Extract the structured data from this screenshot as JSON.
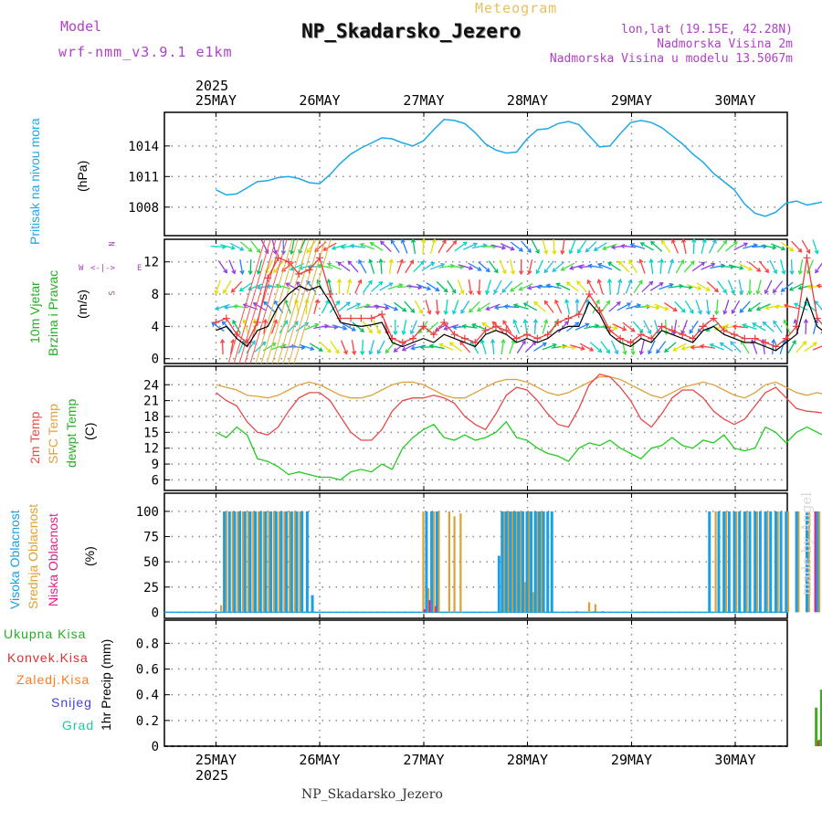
{
  "header": {
    "model_label": "Model",
    "model_name": "wrf-nmm_v3.9.1 e1km",
    "product": "Meteogram",
    "station": "NP_Skadarsko_Jezero",
    "coords": "lon,lat (19.15E, 42.28N)",
    "elevation": "Nadmorska Visina 2m",
    "model_elevation": "Nadmorska Visina u modelu 13.5067m",
    "footer_station": "NP_Skadarsko_Jezero",
    "credit": "made by Angel",
    "year": "2025"
  },
  "colors": {
    "pressure": "#1ea8e8",
    "temp2m": "#e84848",
    "sfc_temp": "#e0a040",
    "dewpoint": "#22cc22",
    "cloud_high": "#1aa0e8",
    "cloud_mid": "#e0a030",
    "cloud_low": "#e0208a",
    "precip_total": "#44aa22",
    "precip_conv": "#e03030",
    "precip_frz": "#ff7a20",
    "snow": "#4040e0",
    "graupel": "#20c8a0",
    "wind_speed": "#000000",
    "wind_gust": "#e84040",
    "label_purple": "#a040d0",
    "header_gold": "#e8c060"
  },
  "chart_data": [
    {
      "type": "line",
      "panel": "pressure",
      "ylabel": "Pritisak na nivou mora",
      "unit": "(hPa)",
      "yticks": [
        1008,
        1011,
        1014
      ],
      "ylim": [
        1005.2,
        1017.3
      ],
      "x_days": [
        "25MAY",
        "26MAY",
        "27MAY",
        "28MAY",
        "29MAY",
        "30MAY"
      ],
      "x": [
        0,
        0.1,
        0.2,
        0.3,
        0.4,
        0.5,
        0.6,
        0.7,
        0.8,
        0.9,
        1.0,
        1.1,
        1.2,
        1.3,
        1.4,
        1.5,
        1.6,
        1.7,
        1.8,
        1.9,
        2.0,
        2.1,
        2.2,
        2.3,
        2.4,
        2.5,
        2.6,
        2.7,
        2.8,
        2.9,
        3.0,
        3.1,
        3.2,
        3.3,
        3.4,
        3.5,
        3.6,
        3.7,
        3.8,
        3.9,
        4.0,
        4.1,
        4.2,
        4.3,
        4.4,
        4.5,
        4.6,
        4.7,
        4.8,
        4.9,
        5.0,
        5.1,
        5.2,
        5.3,
        5.4,
        5.5,
        5.6,
        5.7,
        5.8,
        5.9,
        6.0
      ],
      "series": [
        {
          "name": "",
          "values": [
            1009.7,
            1009.2,
            1009.3,
            1009.9,
            1010.5,
            1010.6,
            1010.9,
            1011.0,
            1010.8,
            1010.4,
            1010.3,
            1011.2,
            1012.3,
            1013.2,
            1013.8,
            1014.3,
            1014.8,
            1014.7,
            1014.3,
            1014.0,
            1014.5,
            1015.6,
            1016.6,
            1016.5,
            1016.2,
            1015.3,
            1014.2,
            1013.6,
            1013.3,
            1013.4,
            1014.7,
            1015.6,
            1015.7,
            1016.2,
            1016.4,
            1016.1,
            1015.0,
            1013.9,
            1014.0,
            1015.2,
            1016.3,
            1016.5,
            1016.3,
            1015.8,
            1015.0,
            1014.2,
            1013.2,
            1012.4,
            1011.3,
            1010.5,
            1009.7,
            1008.3,
            1007.4,
            1007.1,
            1007.5,
            1008.4,
            1008.6,
            1008.2,
            1008.4,
            1008.6,
            1008.7
          ]
        }
      ]
    },
    {
      "type": "line",
      "panel": "wind",
      "ylabel_line1": "10m Vjetar",
      "ylabel_line2": "Brzina i Pravac",
      "unit": "(m/s)",
      "compass_ns": "N",
      "compass_ew_w": "W",
      "compass_ew_e": "E",
      "compass_s": "S",
      "yticks": [
        0,
        4,
        8,
        12
      ],
      "ylim": [
        -0.6,
        14.8
      ],
      "x": [
        0,
        0.1,
        0.2,
        0.3,
        0.4,
        0.5,
        0.6,
        0.7,
        0.8,
        0.9,
        1.0,
        1.1,
        1.2,
        1.3,
        1.4,
        1.5,
        1.6,
        1.7,
        1.8,
        1.9,
        2.0,
        2.1,
        2.2,
        2.3,
        2.4,
        2.5,
        2.6,
        2.7,
        2.8,
        2.9,
        3.0,
        3.1,
        3.2,
        3.3,
        3.4,
        3.5,
        3.6,
        3.7,
        3.8,
        3.9,
        4.0,
        4.1,
        4.2,
        4.3,
        4.4,
        4.5,
        4.6,
        4.7,
        4.8,
        4.9,
        5.0,
        5.1,
        5.2,
        5.3,
        5.4,
        5.5,
        5.6,
        5.7,
        5.8,
        5.9,
        6.0
      ],
      "series": [
        {
          "name": "speed",
          "values": [
            3.5,
            4.0,
            2.5,
            1.5,
            3.5,
            4.0,
            6.5,
            8.0,
            9.0,
            8.5,
            9.0,
            7.0,
            4.5,
            4.2,
            4.0,
            4.2,
            4.5,
            2.0,
            1.5,
            2.0,
            2.5,
            2.0,
            3.0,
            2.5,
            2.0,
            1.5,
            3.0,
            3.5,
            3.0,
            2.0,
            2.5,
            2.0,
            2.5,
            3.5,
            4.0,
            4.0,
            7.0,
            5.5,
            3.0,
            2.0,
            1.5,
            2.5,
            2.0,
            3.5,
            3.0,
            2.5,
            2.0,
            3.5,
            4.0,
            3.0,
            2.5,
            2.0,
            2.0,
            1.5,
            1.0,
            2.0,
            3.0,
            7.5,
            4.0,
            3.0,
            3.0
          ]
        },
        {
          "name": "gust",
          "values": [
            4.5,
            5.0,
            3.0,
            2.0,
            4.5,
            10.0,
            12.5,
            12.0,
            10.5,
            11.0,
            12.5,
            8.0,
            5.0,
            5.0,
            5.0,
            5.0,
            5.5,
            2.5,
            2.0,
            2.5,
            4.0,
            3.0,
            4.5,
            3.0,
            2.5,
            2.0,
            3.5,
            4.0,
            3.5,
            2.5,
            3.0,
            2.5,
            3.0,
            4.5,
            5.0,
            5.5,
            8.0,
            6.0,
            3.5,
            2.5,
            2.0,
            3.0,
            2.5,
            4.0,
            3.5,
            3.0,
            2.5,
            4.0,
            5.0,
            3.5,
            3.0,
            2.5,
            2.5,
            2.0,
            1.5,
            2.5,
            4.0,
            12.5,
            5.0,
            3.5,
            3.5
          ]
        }
      ]
    },
    {
      "type": "line",
      "panel": "temperature",
      "ylabel_t2m": "2m Temp",
      "ylabel_sfc": "SFC Temp",
      "ylabel_dew": "dewpt Temp",
      "unit": "(C)",
      "yticks": [
        6,
        9,
        12,
        15,
        18,
        21,
        24
      ],
      "ylim": [
        4.0,
        27.5
      ],
      "x": [
        0,
        0.1,
        0.2,
        0.3,
        0.4,
        0.5,
        0.6,
        0.7,
        0.8,
        0.9,
        1.0,
        1.1,
        1.2,
        1.3,
        1.4,
        1.5,
        1.6,
        1.7,
        1.8,
        1.9,
        2.0,
        2.1,
        2.2,
        2.3,
        2.4,
        2.5,
        2.6,
        2.7,
        2.8,
        2.9,
        3.0,
        3.1,
        3.2,
        3.3,
        3.4,
        3.5,
        3.6,
        3.7,
        3.8,
        3.9,
        4.0,
        4.1,
        4.2,
        4.3,
        4.4,
        4.5,
        4.6,
        4.7,
        4.8,
        4.9,
        5.0,
        5.1,
        5.2,
        5.3,
        5.4,
        5.5,
        5.6,
        5.7,
        5.8,
        5.9,
        6.0
      ],
      "series": [
        {
          "name": "2m Temp",
          "values": [
            22.5,
            21.0,
            20.0,
            17.0,
            15.0,
            14.5,
            16.0,
            19.0,
            21.5,
            22.5,
            22.5,
            21.0,
            18.0,
            15.0,
            13.5,
            13.5,
            15.5,
            19.0,
            21.0,
            21.5,
            21.5,
            22.0,
            21.5,
            20.5,
            18.0,
            16.5,
            15.5,
            18.5,
            22.0,
            23.5,
            23.0,
            21.0,
            18.5,
            16.5,
            16.0,
            19.5,
            24.0,
            26.0,
            25.5,
            23.5,
            21.0,
            17.5,
            16.0,
            18.5,
            21.5,
            23.0,
            23.0,
            21.5,
            19.0,
            17.5,
            16.5,
            17.5,
            20.0,
            22.5,
            23.5,
            21.5,
            19.5,
            19.0,
            18.8,
            18.5,
            22.5
          ]
        },
        {
          "name": "SFC Temp",
          "values": [
            24.0,
            23.5,
            23.0,
            22.0,
            21.8,
            21.5,
            22.0,
            23.0,
            24.0,
            24.5,
            24.0,
            23.0,
            22.0,
            21.5,
            21.5,
            22.0,
            23.0,
            24.0,
            24.5,
            24.5,
            24.0,
            23.0,
            22.0,
            21.5,
            21.5,
            22.5,
            23.5,
            24.5,
            25.0,
            25.0,
            24.5,
            23.5,
            22.5,
            22.0,
            22.5,
            23.5,
            24.5,
            25.5,
            25.5,
            25.0,
            24.0,
            23.0,
            22.0,
            21.5,
            22.5,
            23.5,
            24.0,
            24.5,
            24.0,
            23.0,
            22.0,
            21.5,
            22.5,
            24.0,
            24.5,
            23.5,
            22.5,
            22.0,
            22.5,
            22.0,
            24.5
          ]
        },
        {
          "name": "dewpt Temp",
          "values": [
            15.0,
            14.0,
            16.0,
            14.5,
            10.0,
            9.5,
            8.5,
            7.0,
            7.5,
            7.0,
            6.5,
            6.5,
            6.0,
            7.5,
            8.0,
            7.5,
            9.0,
            8.0,
            12.0,
            14.0,
            15.5,
            16.5,
            14.0,
            13.5,
            14.5,
            13.5,
            14.0,
            15.0,
            17.0,
            14.0,
            13.5,
            12.0,
            11.0,
            10.5,
            9.5,
            12.0,
            13.0,
            12.5,
            13.5,
            12.0,
            11.0,
            10.0,
            12.0,
            12.5,
            14.0,
            12.5,
            12.0,
            13.5,
            13.0,
            14.5,
            12.0,
            11.5,
            12.0,
            16.0,
            15.0,
            13.0,
            15.0,
            16.0,
            15.0,
            14.0,
            8.5
          ]
        }
      ]
    },
    {
      "type": "bar",
      "panel": "cloud",
      "ylabel_high": "Visoka Oblacnost",
      "ylabel_mid": "Srednja Oblacnost",
      "ylabel_low": "Niska Oblacnost",
      "unit": "(%)",
      "yticks": [
        0,
        25,
        50,
        75,
        100
      ],
      "ylim": [
        -6,
        118
      ],
      "high": [
        [
          0.08,
          100
        ],
        [
          0.13,
          100
        ],
        [
          0.18,
          100
        ],
        [
          0.23,
          100
        ],
        [
          0.28,
          100
        ],
        [
          0.33,
          100
        ],
        [
          0.38,
          100
        ],
        [
          0.43,
          100
        ],
        [
          0.48,
          100
        ],
        [
          0.53,
          100
        ],
        [
          0.58,
          100
        ],
        [
          0.63,
          100
        ],
        [
          0.68,
          100
        ],
        [
          0.73,
          100
        ],
        [
          0.78,
          100
        ],
        [
          0.83,
          100
        ],
        [
          0.88,
          100
        ],
        [
          0.93,
          17
        ],
        [
          2.03,
          100
        ],
        [
          2.08,
          100
        ],
        [
          2.13,
          100
        ],
        [
          2.73,
          56
        ],
        [
          2.76,
          100
        ],
        [
          2.8,
          100
        ],
        [
          2.84,
          100
        ],
        [
          2.88,
          100
        ],
        [
          2.92,
          100
        ],
        [
          2.96,
          100
        ],
        [
          3.0,
          100
        ],
        [
          3.04,
          100
        ],
        [
          3.08,
          100
        ],
        [
          3.12,
          100
        ],
        [
          3.16,
          100
        ],
        [
          3.2,
          100
        ],
        [
          3.24,
          100
        ],
        [
          3.48,
          1
        ],
        [
          3.65,
          1
        ],
        [
          3.73,
          1
        ],
        [
          4.76,
          100
        ],
        [
          4.85,
          100
        ],
        [
          4.9,
          100
        ],
        [
          4.95,
          100
        ],
        [
          5.0,
          100
        ],
        [
          5.05,
          100
        ],
        [
          5.1,
          100
        ],
        [
          5.15,
          100
        ],
        [
          5.2,
          100
        ],
        [
          5.25,
          100
        ],
        [
          5.3,
          100
        ],
        [
          5.35,
          100
        ],
        [
          5.4,
          100
        ],
        [
          5.45,
          100
        ],
        [
          5.5,
          100
        ],
        [
          5.6,
          100
        ],
        [
          5.7,
          100
        ],
        [
          5.8,
          100
        ],
        [
          5.9,
          100
        ]
      ],
      "mid": [
        [
          0.05,
          7
        ],
        [
          0.1,
          100
        ],
        [
          0.16,
          100
        ],
        [
          0.21,
          100
        ],
        [
          0.26,
          100
        ],
        [
          0.31,
          100
        ],
        [
          0.36,
          100
        ],
        [
          0.41,
          100
        ],
        [
          0.46,
          100
        ],
        [
          0.51,
          100
        ],
        [
          0.56,
          100
        ],
        [
          0.61,
          100
        ],
        [
          0.66,
          100
        ],
        [
          0.71,
          100
        ],
        [
          0.76,
          100
        ],
        [
          0.81,
          100
        ],
        [
          2.0,
          100
        ],
        [
          2.05,
          24
        ],
        [
          2.1,
          100
        ],
        [
          2.15,
          100
        ],
        [
          2.25,
          100
        ],
        [
          2.3,
          95
        ],
        [
          2.36,
          98
        ],
        [
          2.78,
          100
        ],
        [
          2.82,
          100
        ],
        [
          2.86,
          100
        ],
        [
          2.9,
          100
        ],
        [
          2.94,
          100
        ],
        [
          2.98,
          30
        ],
        [
          3.02,
          100
        ],
        [
          3.06,
          20
        ],
        [
          3.1,
          100
        ],
        [
          3.14,
          100
        ],
        [
          3.6,
          10
        ],
        [
          3.66,
          8
        ],
        [
          4.82,
          100
        ],
        [
          4.92,
          100
        ],
        [
          5.02,
          100
        ],
        [
          5.12,
          100
        ],
        [
          5.22,
          100
        ],
        [
          5.32,
          100
        ],
        [
          5.42,
          100
        ],
        [
          5.52,
          100
        ],
        [
          5.62,
          100
        ],
        [
          5.72,
          100
        ],
        [
          5.82,
          100
        ],
        [
          5.95,
          100
        ]
      ],
      "low": [
        [
          2.01,
          3
        ],
        [
          2.06,
          12
        ],
        [
          2.12,
          6
        ],
        [
          5.78,
          100
        ],
        [
          5.86,
          100
        ],
        [
          5.95,
          100
        ]
      ]
    },
    {
      "type": "bar",
      "panel": "precip",
      "legend": [
        "Ukupna Kisa",
        "Konvek.Kisa",
        "Zaledj.Kisa",
        "Snijeg",
        "Grad"
      ],
      "ylabel": "1hr Precip (mm)",
      "yticks": [
        0,
        0.2,
        0.4,
        0.6,
        0.8
      ],
      "ylim": [
        0,
        0.98
      ],
      "total": [
        [
          5.79,
          0.3
        ],
        [
          5.84,
          0.44
        ],
        [
          5.82,
          0.05
        ]
      ],
      "conv": [
        [
          5.81,
          0.04
        ],
        [
          5.86,
          0.05
        ]
      ]
    }
  ]
}
